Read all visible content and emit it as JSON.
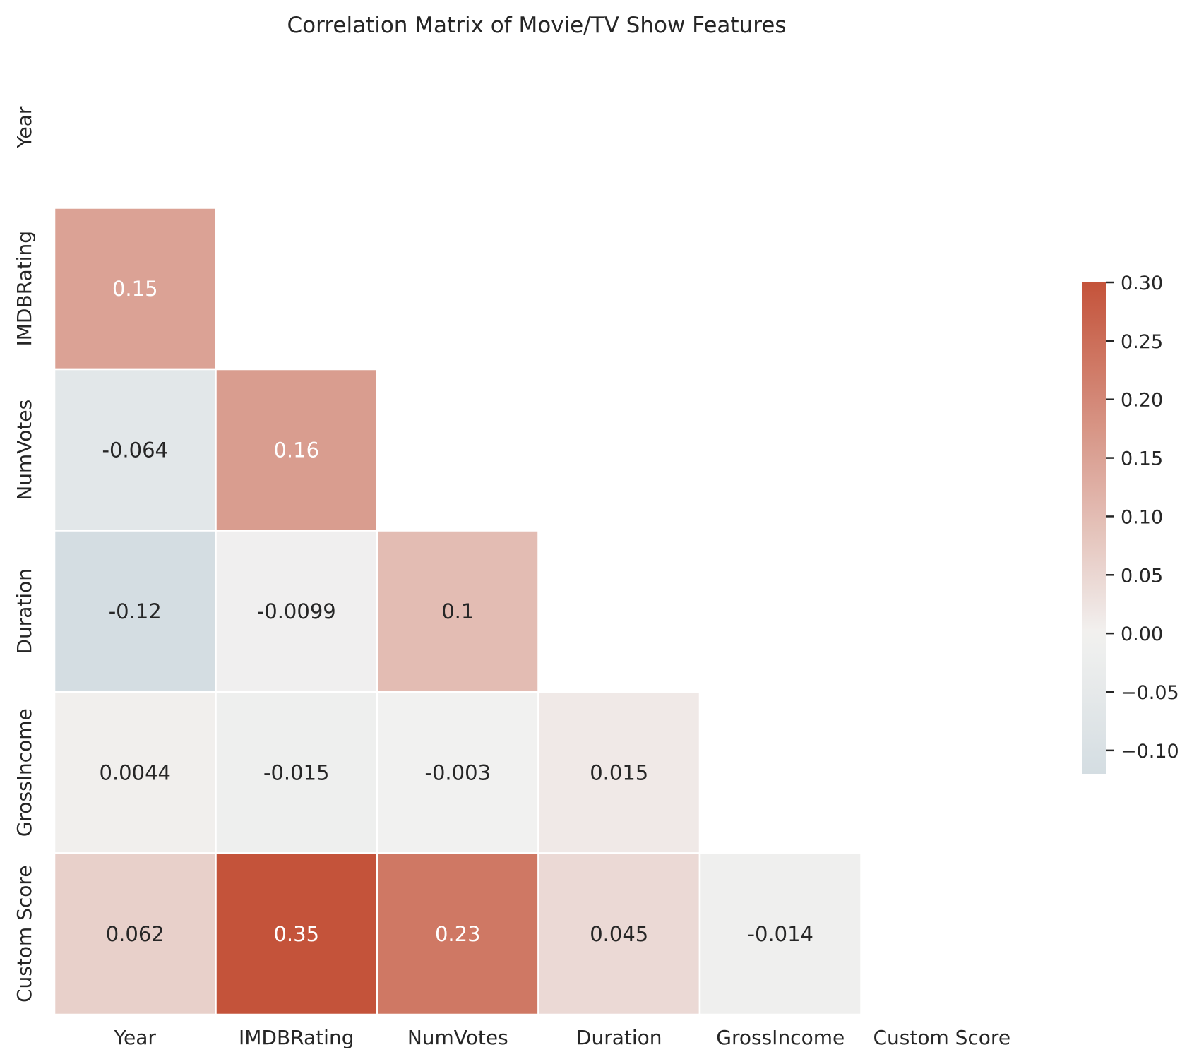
{
  "chart_data": {
    "type": "heatmap",
    "title": "Correlation Matrix of Movie/TV Show Features",
    "xlabel": "",
    "ylabel": "",
    "labels": [
      "Year",
      "IMDBRating",
      "NumVotes",
      "Duration",
      "GrossIncome",
      "Custom Score"
    ],
    "mask": "upper-triangle-and-diagonal",
    "matrix_lower": [
      [],
      [
        0.15
      ],
      [
        -0.064,
        0.16
      ],
      [
        -0.12,
        -0.0099,
        0.1
      ],
      [
        0.0044,
        -0.015,
        -0.003,
        0.015
      ],
      [
        0.062,
        0.35,
        0.23,
        0.045,
        -0.014
      ]
    ],
    "annotations": [
      [],
      [
        "0.15"
      ],
      [
        "-0.064",
        "0.16"
      ],
      [
        "-0.12",
        "-0.0099",
        "0.1"
      ],
      [
        "0.0044",
        "-0.015",
        "-0.003",
        "0.015"
      ],
      [
        "0.062",
        "0.35",
        "0.23",
        "0.045",
        "-0.014"
      ]
    ],
    "colorbar": {
      "vmin": -0.12,
      "vmax": 0.3,
      "ticks": [
        0.3,
        0.25,
        0.2,
        0.15,
        0.1,
        0.05,
        0.0,
        -0.05,
        -0.1
      ],
      "tick_labels": [
        "0.30",
        "0.25",
        "0.20",
        "0.15",
        "0.10",
        "0.05",
        "0.00",
        "−0.05",
        "−0.10"
      ],
      "low_color": "#a7c0cd",
      "mid_color": "#f2f1f0",
      "high_color": "#c4533a"
    },
    "grid": false,
    "cell_line_color": "#ffffff"
  }
}
